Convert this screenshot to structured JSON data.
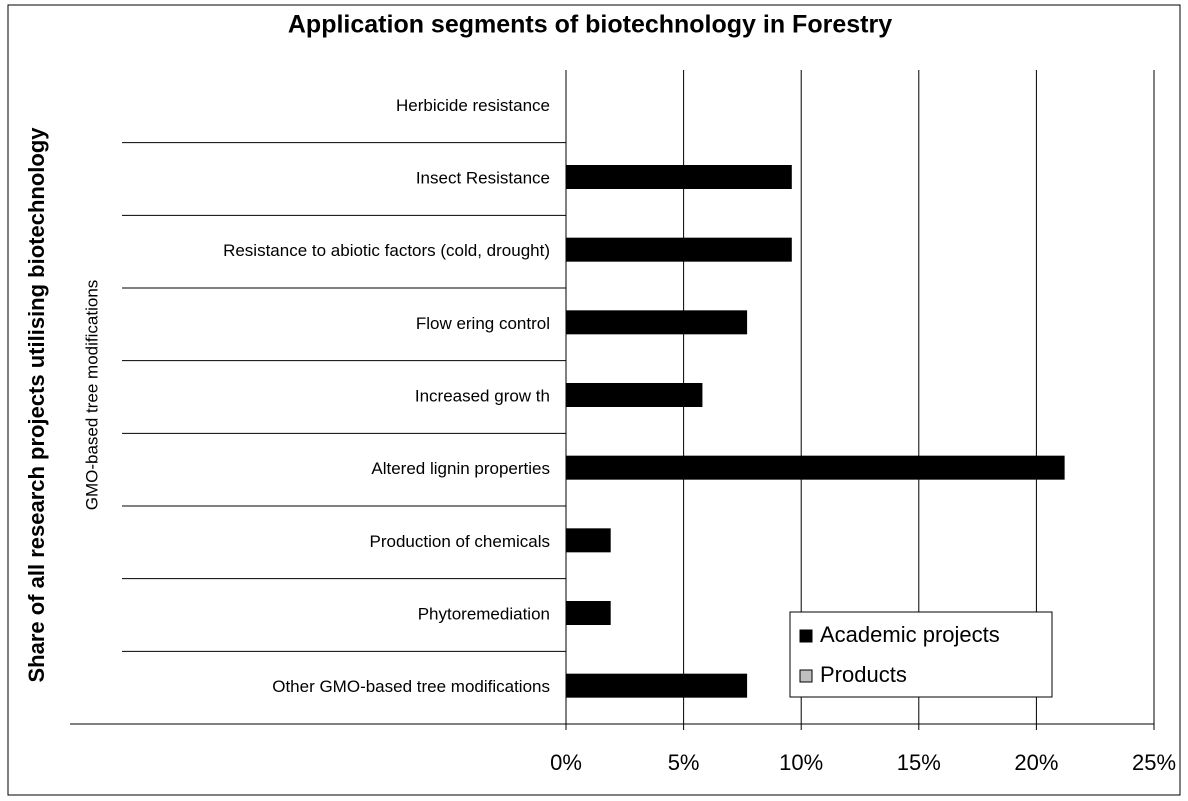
{
  "chart_data": {
    "type": "hbar",
    "title": "Application segments of biotechnology in Forestry",
    "y_axis_label": "Share of all research projects utilising biotechnology",
    "y_axis_sublabel": "GMO-based tree modifications",
    "categories": [
      "Herbicide resistance",
      "Insect Resistance",
      "Resistance to abiotic factors (cold, drought)",
      "Flow ering control",
      "Increased grow th",
      "Altered lignin properties",
      "Production of chemicals",
      "Phytoremediation",
      "Other GMO-based tree modifications"
    ],
    "series": [
      {
        "name": "Academic projects",
        "color": "#000000",
        "values": [
          0,
          9.6,
          9.6,
          7.7,
          5.8,
          21.2,
          1.9,
          1.9,
          7.7
        ]
      },
      {
        "name": "Products",
        "color": "#c0c0c0",
        "values": [
          0,
          0,
          0,
          0,
          0,
          0,
          0,
          0,
          0
        ]
      }
    ],
    "xlim": [
      0,
      25
    ],
    "xticks": [
      {
        "value": 0,
        "label": "0%"
      },
      {
        "value": 5,
        "label": "5%"
      },
      {
        "value": 10,
        "label": "10%"
      },
      {
        "value": 15,
        "label": "15%"
      },
      {
        "value": 20,
        "label": "20%"
      },
      {
        "value": 25,
        "label": "25%"
      }
    ],
    "grid": true,
    "legend": "lower right"
  }
}
